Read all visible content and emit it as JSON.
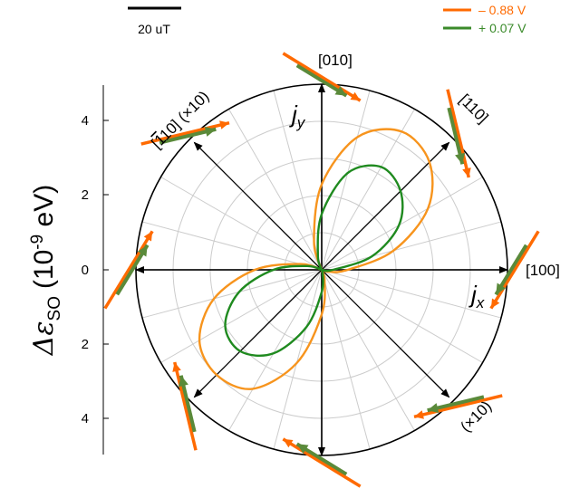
{
  "chart_data": {
    "type": "polar-line",
    "ylabel": "Δε",
    "ylabel_sub": "SO",
    "ylabel_unit_prefix": "(10",
    "ylabel_unit_exp": "-9",
    "ylabel_unit_suffix": " eV)",
    "radial_ticks": [
      "4",
      "2",
      "0",
      "2",
      "4"
    ],
    "rmax": 5,
    "scale_bar_label": "20 uT",
    "directions": {
      "d100": "[100]",
      "d010": "[010]",
      "d110": "[110]",
      "d110bar_bar": "1",
      "d110bar_rest": "10] (×10)",
      "d110bar_bracket": "[",
      "x10_lower": "(×10)"
    },
    "axis_labels": {
      "jx_main": "j",
      "jx_sub": "x",
      "jy_main": "j",
      "jy_sub": "y"
    },
    "colors": {
      "orange": "#ff6a00",
      "orange_light": "#f7941d",
      "green": "#1f8a1f",
      "olive": "#6b8e23"
    },
    "series": [
      {
        "name": "– 0.88 V",
        "color": "#f7941d",
        "theta_deg": [
          0,
          15,
          30,
          45,
          60,
          75,
          90,
          105,
          120,
          135,
          150,
          165,
          180,
          195,
          210,
          225,
          240,
          255,
          270,
          285,
          300,
          315,
          330,
          345
        ],
        "r": [
          0.7,
          2.0,
          3.3,
          4.1,
          4.3,
          3.7,
          2.3,
          0.8,
          0.0,
          0.0,
          0.0,
          0.6,
          1.8,
          3.0,
          3.8,
          4.0,
          3.7,
          2.6,
          1.2,
          0.3,
          0.0,
          0.0,
          0.0,
          0.2
        ]
      },
      {
        "name": "+ 0.07 V",
        "color": "#1f8a1f",
        "theta_deg": [
          0,
          15,
          30,
          45,
          60,
          75,
          90,
          105,
          120,
          135,
          150,
          165,
          180,
          195,
          210,
          225,
          240,
          255,
          270,
          285,
          300,
          315,
          330,
          345
        ],
        "r": [
          0.3,
          1.4,
          2.4,
          3.0,
          3.2,
          2.7,
          1.5,
          0.4,
          0.0,
          0.0,
          0.0,
          0.4,
          1.3,
          2.3,
          3.0,
          3.1,
          2.6,
          1.6,
          0.6,
          0.1,
          0.0,
          0.0,
          0.0,
          0.05
        ]
      }
    ],
    "arrows": {
      "orange_angles_deg": [
        0,
        45,
        90,
        135,
        180,
        225,
        270,
        315
      ],
      "green_angles_deg": [
        0,
        45,
        90,
        135,
        180,
        225,
        270,
        315
      ]
    }
  }
}
